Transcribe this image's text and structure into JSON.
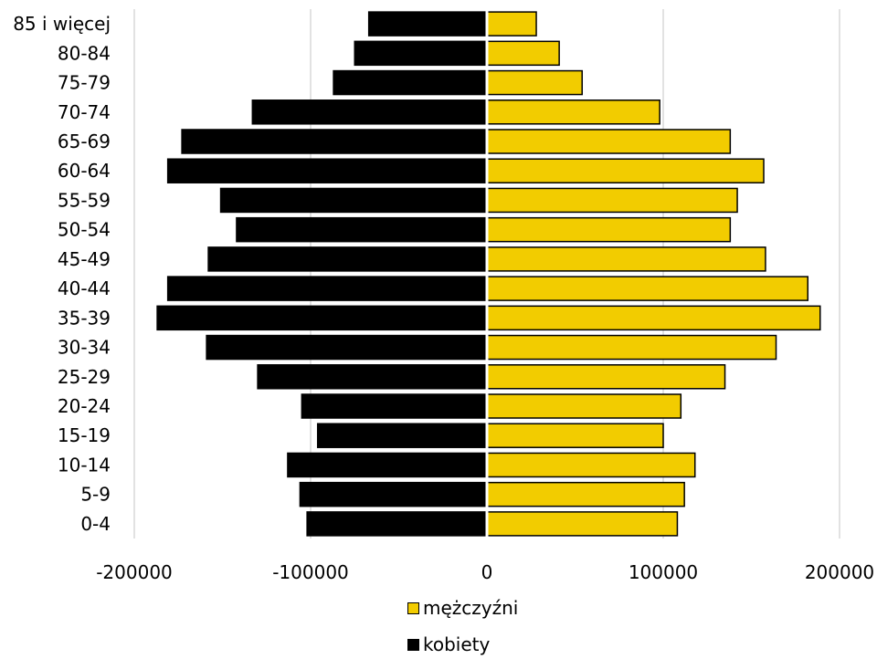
{
  "chart_data": {
    "type": "bar",
    "orientation": "horizontal",
    "categories": [
      "85 i więcej",
      "80-84",
      "75-79",
      "70-74",
      "65-69",
      "60-64",
      "55-59",
      "50-54",
      "45-49",
      "40-44",
      "35-39",
      "30-34",
      "25-29",
      "20-24",
      "15-19",
      "10-14",
      "5-9",
      "0-4"
    ],
    "series": [
      {
        "name": "mężczyźni",
        "color": "#F2CC00",
        "values": [
          28000,
          41000,
          54000,
          98000,
          138000,
          157000,
          142000,
          138000,
          158000,
          182000,
          189000,
          164000,
          135000,
          110000,
          100000,
          118000,
          112000,
          108000
        ]
      },
      {
        "name": "kobiety",
        "color": "#000000",
        "values": [
          -67000,
          -75000,
          -87000,
          -133000,
          -173000,
          -181000,
          -151000,
          -142000,
          -158000,
          -181000,
          -187000,
          -159000,
          -130000,
          -105000,
          -96000,
          -113000,
          -106000,
          -102000
        ]
      }
    ],
    "xticks": [
      "-200000",
      "-100000",
      "0",
      "100000",
      "200000"
    ],
    "xlim": [
      -200000,
      200000
    ],
    "grid": true,
    "legend_position": "bottom"
  },
  "legend": {
    "men": "mężczyźni",
    "women": "kobiety"
  }
}
